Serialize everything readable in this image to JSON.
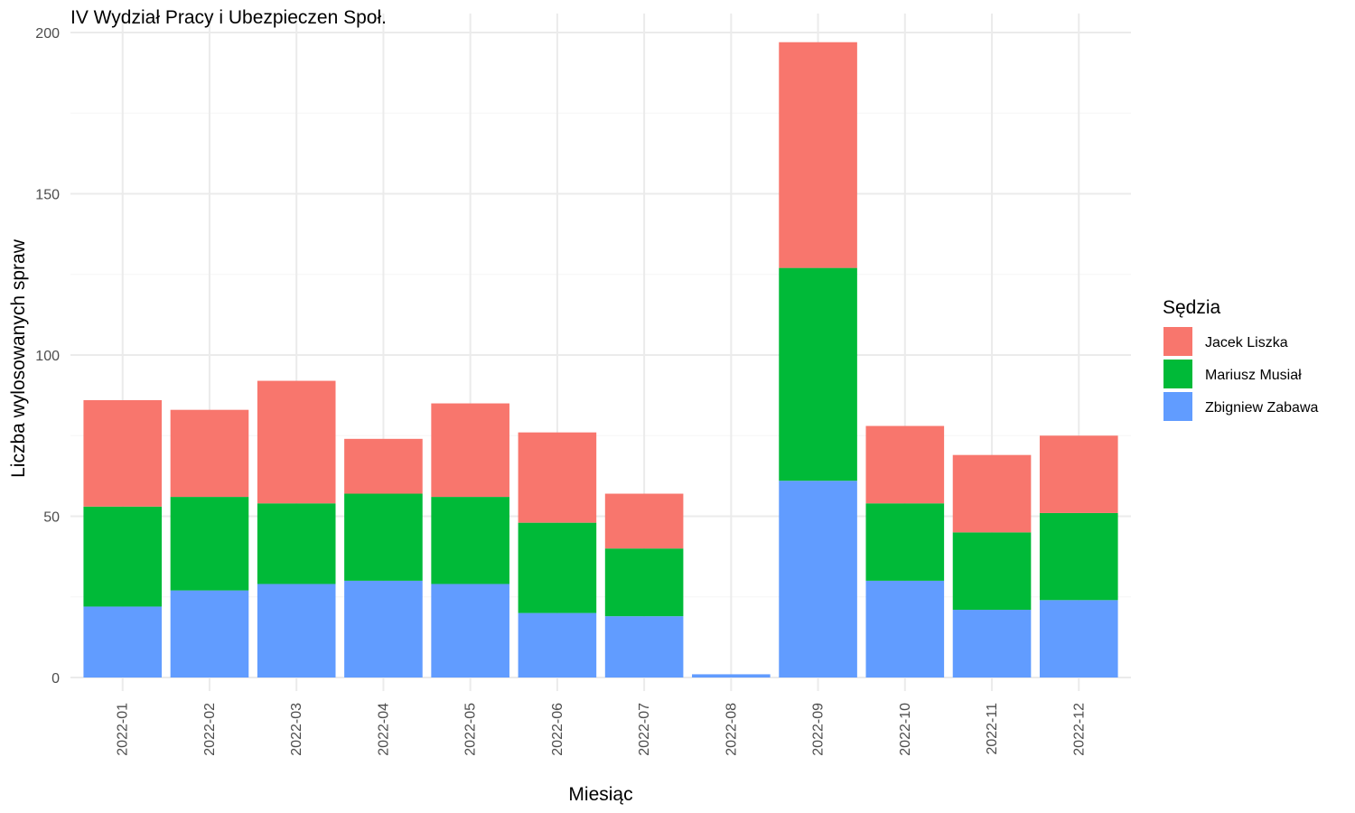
{
  "chart_data": {
    "type": "bar",
    "stacked": true,
    "title": "IV Wydział Pracy i Ubezpieczen Społ.",
    "xlabel": "Miesiąc",
    "ylabel": "Liczba wylosowanych spraw",
    "ylim": [
      0,
      200
    ],
    "yticks": [
      "0",
      "50",
      "100",
      "150",
      "200"
    ],
    "grid": true,
    "categories": [
      "2022-01",
      "2022-02",
      "2022-03",
      "2022-04",
      "2022-05",
      "2022-06",
      "2022-07",
      "2022-08",
      "2022-09",
      "2022-10",
      "2022-11",
      "2022-12"
    ],
    "series": [
      {
        "name": "Zbigniew Zabawa",
        "color": "#619CFF",
        "values": [
          22,
          27,
          29,
          30,
          29,
          20,
          19,
          1,
          61,
          30,
          21,
          24
        ]
      },
      {
        "name": "Mariusz Musiał",
        "color": "#00BA38",
        "values": [
          31,
          29,
          25,
          27,
          27,
          28,
          21,
          0,
          66,
          24,
          24,
          27
        ]
      },
      {
        "name": "Jacek Liszka",
        "color": "#F8766D",
        "values": [
          33,
          27,
          38,
          17,
          29,
          28,
          17,
          0,
          70,
          24,
          24,
          24
        ]
      }
    ],
    "legend": {
      "title": "Sędzia",
      "position": "right",
      "order": [
        "Jacek Liszka",
        "Mariusz Musiał",
        "Zbigniew Zabawa"
      ]
    }
  }
}
